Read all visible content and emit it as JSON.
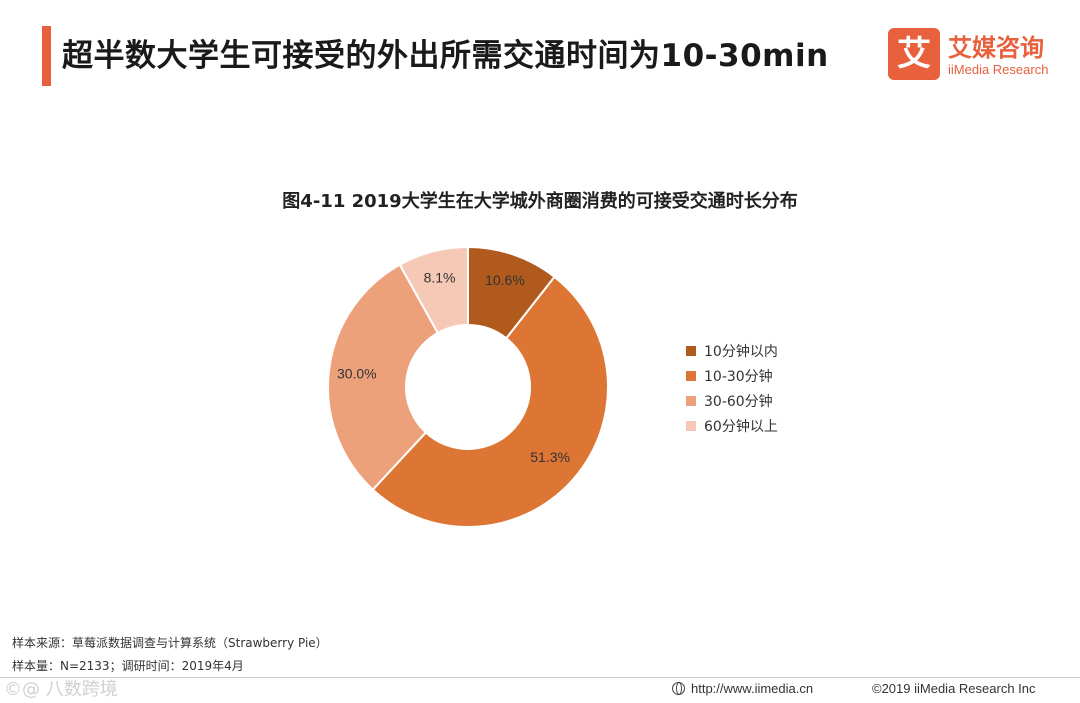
{
  "header": {
    "title": "超半数大学生可接受的外出所需交通时间为10-30min"
  },
  "logo": {
    "mark": "艾",
    "name_cn": "艾媒咨询",
    "name_en": "iiMedia Research"
  },
  "chart_data": {
    "type": "pie",
    "donut": true,
    "title": "图4-11 2019大学生在大学城外商圈消费的可接受交通时长分布",
    "categories": [
      "10分钟以内",
      "10-30分钟",
      "30-60分钟",
      "60分钟以上"
    ],
    "values": [
      10.6,
      51.3,
      30.0,
      8.1
    ],
    "labels": [
      "10.6%",
      "51.3%",
      "30.0%",
      "8.1%"
    ],
    "colors": [
      "#b05a1e",
      "#dd7634",
      "#eda17b",
      "#f5c9b5"
    ],
    "legend_position": "right"
  },
  "footnotes": {
    "source": "样本来源：草莓派数据调查与计算系统（Strawberry Pie）",
    "sample": "样本量：N=2133；调研时间：2019年4月"
  },
  "footer": {
    "watermark": "©@ 八数跨境",
    "url": "http://www.iimedia.cn",
    "copyright": "©2019  iiMedia Research  Inc"
  }
}
